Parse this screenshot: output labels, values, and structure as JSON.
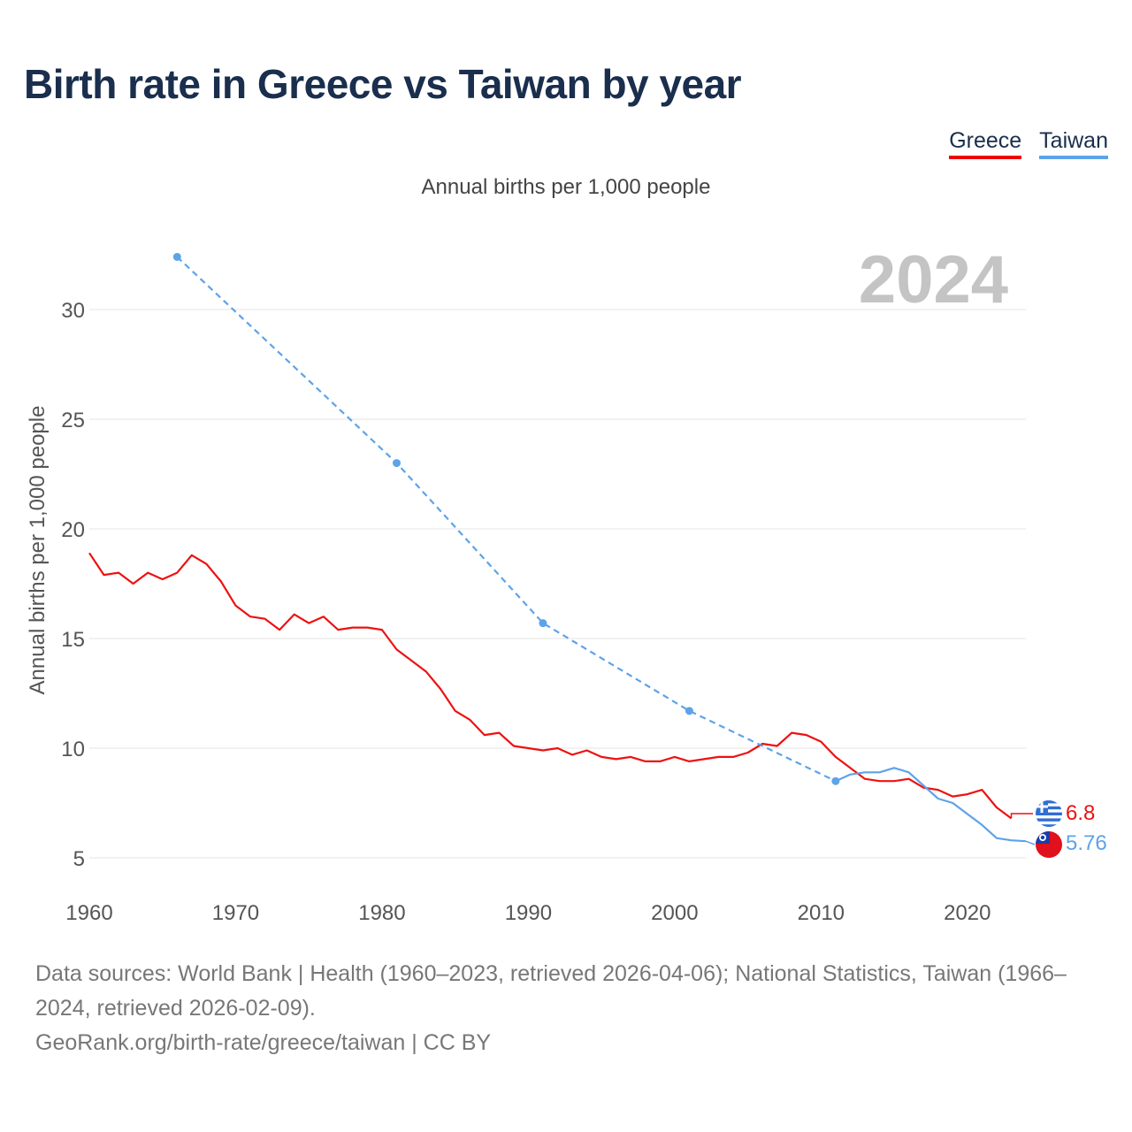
{
  "title": "Birth rate in Greece vs Taiwan by year",
  "legend": [
    {
      "name": "Greece",
      "color": "#ee1111"
    },
    {
      "name": "Taiwan",
      "color": "#5da3e8"
    }
  ],
  "subtitle": "Annual births per 1,000 people",
  "year_watermark": "2024",
  "footer": {
    "sources": "Data sources: World Bank | Health (1960–2023, retrieved 2026-04-06); National Statistics, Taiwan (1966–2024, retrieved 2026-02-09).",
    "credit": "GeoRank.org/birth-rate/greece/taiwan | CC BY"
  },
  "chart_data": {
    "type": "line",
    "title": "Birth rate in Greece vs Taiwan by year",
    "xlabel": "",
    "ylabel": "Annual births per 1,000 people",
    "xlim": [
      1960,
      2024
    ],
    "ylim": [
      4,
      33.5
    ],
    "x_ticks": [
      1960,
      1970,
      1980,
      1990,
      2000,
      2010,
      2020
    ],
    "y_ticks": [
      5,
      10,
      15,
      20,
      25,
      30
    ],
    "grid": true,
    "legend_position": "top-right",
    "series": [
      {
        "name": "Greece",
        "color": "#ee1111",
        "end_label": "6.8",
        "x": [
          1960,
          1961,
          1962,
          1963,
          1964,
          1965,
          1966,
          1967,
          1968,
          1969,
          1970,
          1971,
          1972,
          1973,
          1974,
          1975,
          1976,
          1977,
          1978,
          1979,
          1980,
          1981,
          1982,
          1983,
          1984,
          1985,
          1986,
          1987,
          1988,
          1989,
          1990,
          1991,
          1992,
          1993,
          1994,
          1995,
          1996,
          1997,
          1998,
          1999,
          2000,
          2001,
          2002,
          2003,
          2004,
          2005,
          2006,
          2007,
          2008,
          2009,
          2010,
          2011,
          2012,
          2013,
          2014,
          2015,
          2016,
          2017,
          2018,
          2019,
          2020,
          2021,
          2022,
          2023
        ],
        "values": [
          18.9,
          17.9,
          18.0,
          17.5,
          18.0,
          17.7,
          18.0,
          18.8,
          18.4,
          17.6,
          16.5,
          16.0,
          15.9,
          15.4,
          16.1,
          15.7,
          16.0,
          15.4,
          15.5,
          15.5,
          15.4,
          14.5,
          14.0,
          13.5,
          12.7,
          11.7,
          11.3,
          10.6,
          10.7,
          10.1,
          10.0,
          9.9,
          10.0,
          9.7,
          9.9,
          9.6,
          9.5,
          9.6,
          9.4,
          9.4,
          9.6,
          9.4,
          9.5,
          9.6,
          9.6,
          9.8,
          10.2,
          10.1,
          10.7,
          10.6,
          10.3,
          9.6,
          9.1,
          8.6,
          8.5,
          8.5,
          8.6,
          8.2,
          8.1,
          7.8,
          7.9,
          8.1,
          7.3,
          6.8
        ]
      },
      {
        "name": "Taiwan",
        "color": "#5da3e8",
        "end_label": "5.76",
        "dashed_x": [
          1966,
          1981,
          1991,
          2001,
          2011
        ],
        "dashed_values": [
          32.4,
          23.0,
          15.7,
          11.7,
          8.5
        ],
        "solid_x": [
          2011,
          2012,
          2013,
          2014,
          2015,
          2016,
          2017,
          2018,
          2019,
          2020,
          2021,
          2022,
          2023,
          2024
        ],
        "solid_values": [
          8.5,
          8.8,
          8.9,
          8.9,
          9.1,
          8.9,
          8.3,
          7.7,
          7.5,
          7.0,
          6.5,
          5.9,
          5.8,
          5.76
        ]
      }
    ]
  }
}
